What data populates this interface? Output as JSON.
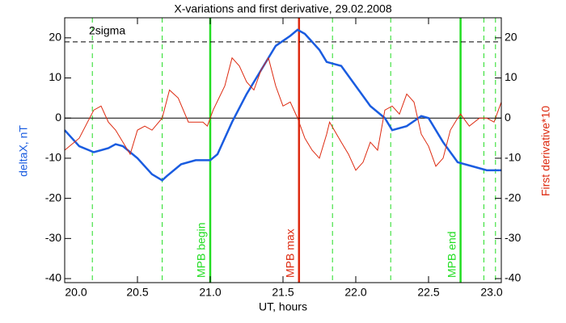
{
  "chart_data": {
    "type": "line",
    "title": "X-variations and first derivative, 29.02.2008",
    "x_label": "UT, hours",
    "y_label": "deltaX, nT",
    "y2_label": "First derivative*10",
    "xlim": [
      20,
      23
    ],
    "xticks": [
      {
        "value": 20,
        "label": "20.0"
      },
      20.5,
      {
        "value": 21,
        "label": "21.0"
      },
      21.5,
      {
        "value": 22,
        "label": "22.0"
      },
      22.5,
      {
        "value": 23,
        "label": "23.0"
      }
    ],
    "ylim": [
      -41,
      25
    ],
    "yticks": [
      -40,
      -30,
      -20,
      -10,
      0,
      10,
      20
    ],
    "y2lim": [
      -41,
      25
    ],
    "y2ticks": [
      -40,
      -30,
      -20,
      -10,
      0,
      10,
      20
    ],
    "zero_line": 0,
    "threshold": {
      "value": 19,
      "label": "2sigma",
      "color": "#000000"
    },
    "series": [
      {
        "name": "deltaX, nT",
        "color": "#1a5ce0",
        "x": [
          20.0,
          20.1,
          20.2,
          20.3,
          20.35,
          20.4,
          20.5,
          20.6,
          20.67,
          20.7,
          20.8,
          20.9,
          21.0,
          21.05,
          21.15,
          21.25,
          21.35,
          21.45,
          21.55,
          21.6,
          21.65,
          21.75,
          21.8,
          21.85,
          21.9,
          22.0,
          22.1,
          22.2,
          22.25,
          22.35,
          22.45,
          22.5,
          22.6,
          22.7,
          22.8,
          22.9,
          23.0
        ],
        "values": [
          -3,
          -7,
          -8.5,
          -7.5,
          -6.5,
          -7,
          -10,
          -14,
          -15.5,
          -14.5,
          -11.5,
          -10.5,
          -10.5,
          -9,
          -1,
          6,
          12,
          18,
          20.5,
          22,
          21,
          17,
          14,
          13.5,
          13,
          8,
          3,
          0,
          -3,
          -2,
          0.5,
          0,
          -6,
          -11,
          -12,
          -13,
          -13
        ]
      },
      {
        "name": "First derivative*10",
        "color": "#dd2a10",
        "axis": "y2",
        "x": [
          20.0,
          20.1,
          20.2,
          20.25,
          20.3,
          20.35,
          20.45,
          20.5,
          20.55,
          20.6,
          20.67,
          20.72,
          20.78,
          20.85,
          20.95,
          20.98,
          21.02,
          21.1,
          21.15,
          21.2,
          21.25,
          21.3,
          21.35,
          21.4,
          21.45,
          21.5,
          21.55,
          21.6,
          21.65,
          21.7,
          21.75,
          21.8,
          21.82,
          21.9,
          21.95,
          22.0,
          22.05,
          22.1,
          22.15,
          22.2,
          22.25,
          22.3,
          22.35,
          22.4,
          22.45,
          22.5,
          22.55,
          22.6,
          22.65,
          22.7,
          22.72,
          22.78,
          22.85,
          22.9,
          22.95,
          23.0
        ],
        "values": [
          -8,
          -5,
          2,
          3,
          -1,
          -3,
          -9,
          -3,
          -2,
          -3,
          0,
          7,
          5,
          -1,
          -1,
          -2,
          2,
          8,
          15,
          13,
          9,
          7,
          12,
          15,
          8,
          3,
          4,
          0,
          -5,
          -8,
          -10,
          -4,
          -1,
          -6,
          -9,
          -13,
          -11,
          -6,
          -8,
          2,
          3,
          1,
          6,
          4,
          -4,
          -7,
          -12,
          -10,
          -3,
          0,
          1,
          -2,
          0,
          0,
          -1,
          4
        ]
      }
    ],
    "vlines": [
      {
        "x": 20.19,
        "color": "#22dd22",
        "style": "dashed"
      },
      {
        "x": 20.67,
        "color": "#22dd22",
        "style": "dashed"
      },
      {
        "x": 21.0,
        "color": "#22dd22",
        "style": "solid",
        "label": "MPB begin"
      },
      {
        "x": 21.61,
        "color": "#dd2a10",
        "style": "solid",
        "label": "MPB max"
      },
      {
        "x": 21.84,
        "color": "#22dd22",
        "style": "dashed"
      },
      {
        "x": 22.24,
        "color": "#22dd22",
        "style": "dashed"
      },
      {
        "x": 22.72,
        "color": "#22dd22",
        "style": "solid",
        "label": "MPB end"
      },
      {
        "x": 22.88,
        "color": "#22dd22",
        "style": "dashed"
      },
      {
        "x": 22.96,
        "color": "#22dd22",
        "style": "dashed"
      }
    ]
  }
}
